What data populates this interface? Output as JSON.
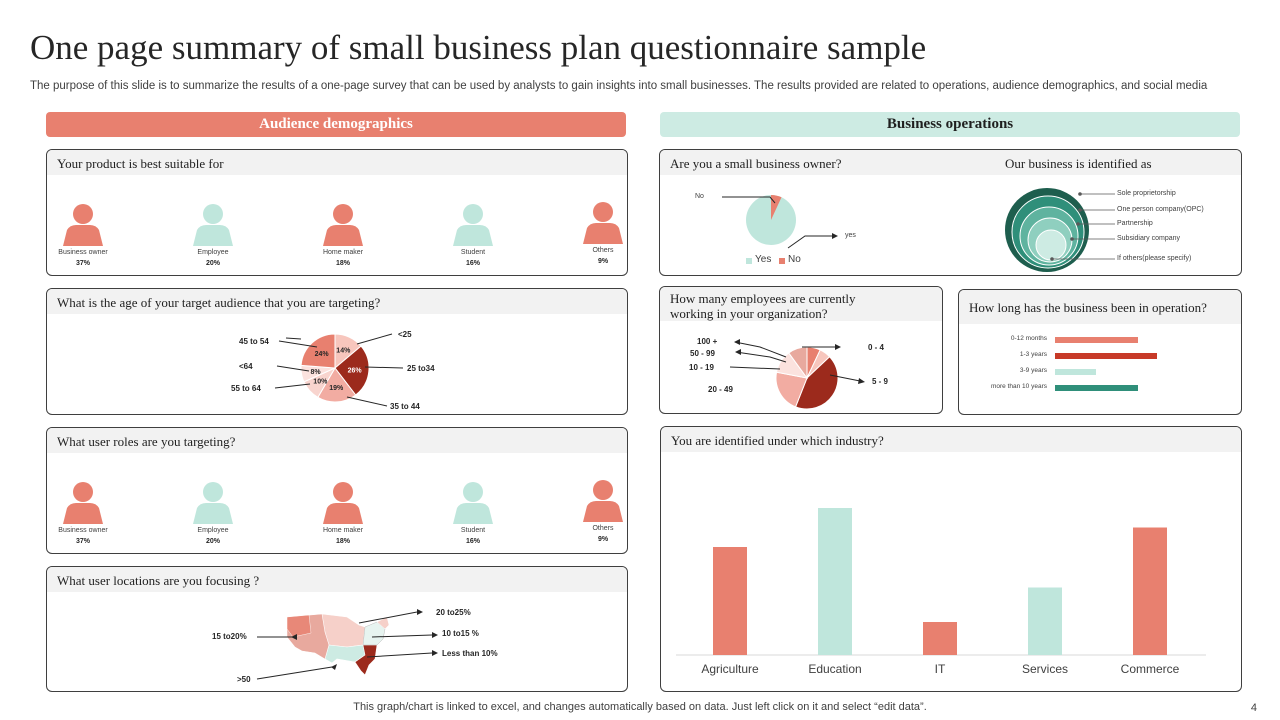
{
  "title": "One page summary of small business plan questionnaire sample",
  "subtitle": "The purpose of this slide is to summarize the results of a one-page survey that can be used by analysts to gain insights into small businesses. The results provided are related to operations, audience demographics, and social media",
  "sections": {
    "audience": "Audience demographics",
    "operations": "Business operations"
  },
  "colors": {
    "accent": "#e8806f",
    "mint": "#cdebe3",
    "dark_red": "#9c2a1c",
    "teal": "#2f8f7a"
  },
  "q1": {
    "question": "Your product is best suitable for",
    "items": [
      {
        "label": "Business owner",
        "value": "37%",
        "icon": "person-icon",
        "color": "#e8806f"
      },
      {
        "label": "Employee",
        "value": "20%",
        "icon": "person-icon",
        "color": "#bfe6dc"
      },
      {
        "label": "Home maker",
        "value": "18%",
        "icon": "person-icon",
        "color": "#e8806f"
      },
      {
        "label": "Student",
        "value": "16%",
        "icon": "person-icon",
        "color": "#bfe6dc"
      },
      {
        "label": "Others",
        "value": "9%",
        "icon": "person-icon",
        "color": "#e8806f"
      }
    ]
  },
  "q2": {
    "question": "What is the age of your target  audience that you are targeting?",
    "slices": [
      {
        "label": "<25",
        "value": "14%",
        "color": "#f7c6bd"
      },
      {
        "label": "25 to34",
        "value": "26%",
        "color": "#9c2a1c"
      },
      {
        "label": "35 to 44",
        "value": "19%",
        "color": "#f2aca2"
      },
      {
        "label": "55 to 64",
        "value": "10%",
        "color": "#f8d4ce"
      },
      {
        "label": "<64",
        "value": "8%",
        "color": "#fbe2de"
      },
      {
        "label": "45 to 54",
        "value": "24%",
        "color": "#e8806f"
      }
    ]
  },
  "q3": {
    "question": "What user roles are you targeting?",
    "items": [
      {
        "label": "Business owner",
        "value": "37%",
        "color": "#e8806f"
      },
      {
        "label": "Employee",
        "value": "20%",
        "color": "#bfe6dc"
      },
      {
        "label": "Home maker",
        "value": "18%",
        "color": "#e8806f"
      },
      {
        "label": "Student",
        "value": "16%",
        "color": "#bfe6dc"
      },
      {
        "label": "Others",
        "value": "9%",
        "color": "#e8806f"
      }
    ]
  },
  "q4": {
    "question": "What user locations are you focusing ?",
    "labels": [
      "20 to25%",
      "10 to15 %",
      "Less than 10%",
      "15 to20%",
      ">50"
    ]
  },
  "q5": {
    "question": "Are you a small business owner?",
    "no_label": "No",
    "yes_label": "yes",
    "legend": [
      "Yes",
      "No"
    ],
    "yes_share": 0.93,
    "no_share": 0.07
  },
  "q6": {
    "question": "Our business is identified as",
    "labels": [
      "Sole proprietorship",
      "One person company(OPC)",
      "Partnership",
      "Subsidiary company",
      "If others(please  specify)"
    ]
  },
  "q7": {
    "question_line1": "How many employees are currently",
    "question_line2": "working in your organization?",
    "labels": [
      "100 +",
      "50 - 99",
      "10 - 19",
      "20 - 49",
      "0 - 4",
      "5 - 9"
    ]
  },
  "q8": {
    "question": "How long has the business been in operation?",
    "categories": [
      "0-12 months",
      "1-3 years",
      "3-9 years",
      "more than 10 years"
    ],
    "values": [
      0.55,
      0.68,
      0.27,
      0.55
    ],
    "colors": [
      "#e8806f",
      "#c73a28",
      "#bfe6dc",
      "#2f8f7a"
    ]
  },
  "q9": {
    "question": "You are identified under which industry?"
  },
  "chart_data": {
    "type": "bar",
    "categories": [
      "Agriculture",
      "Education",
      "IT",
      "Services",
      "Commerce"
    ],
    "values": [
      0.72,
      0.98,
      0.22,
      0.45,
      0.85
    ],
    "colors": [
      "#e8806f",
      "#bfe6dc",
      "#e8806f",
      "#bfe6dc",
      "#e8806f"
    ],
    "title": "",
    "xlabel": "",
    "ylabel": "",
    "ylim": [
      0,
      1
    ]
  },
  "footer": "This graph/chart is linked to excel,  and changes automatically based on data. Just left click on it and select “edit data”.",
  "page_number": "4"
}
